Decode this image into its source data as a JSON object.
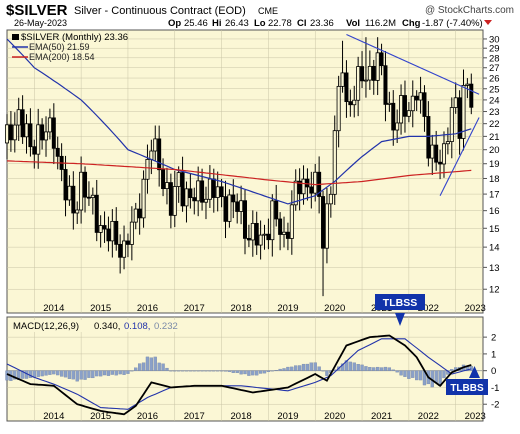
{
  "header": {
    "symbol": "$SILVER",
    "description": "Silver - Continuous Contract (EOD)",
    "exchange": "CME",
    "watermark": "@ StockCharts.com",
    "date": "26-May-2023",
    "op_label": "Op",
    "op_value": "25.46",
    "hi_label": "Hi",
    "hi_value": "26.43",
    "lo_label": "Lo",
    "lo_value": "22.78",
    "cl_label": "Cl",
    "cl_value": "23.36",
    "vol_label": "Vol",
    "vol_value": "116.2M",
    "chg_label": "Chg",
    "chg_value": "-1.87 (-7.40%)"
  },
  "price_legend": {
    "series": "$SILVER (Monthly) 23.36",
    "ema50": "EMA(50) 21.59",
    "ema200": "EMA(200) 18.54"
  },
  "macd_legend": {
    "params": "MACD(12,26,9)",
    "v1": "0.340,",
    "v2": "0.108,",
    "v3": "0.232"
  },
  "annotations": {
    "top_label": "TLBSS",
    "bottom_label": "TLBBS"
  },
  "colors": {
    "panel_bg": "#fbf7d5",
    "ema50": "#2233aa",
    "ema200": "#cc2222",
    "trend": "#3344cc",
    "hist": "#8aa0c8",
    "label_box": "#1133aa"
  },
  "chart_data": [
    {
      "type": "ohlc",
      "interval": "monthly",
      "scale": "log",
      "ylim": [
        11,
        31
      ],
      "xlim": [
        "2013-06",
        "2023-08"
      ],
      "y_ticks": [
        "30",
        "29",
        "28",
        "27",
        "26",
        "25",
        "24",
        "23",
        "22",
        "21",
        "20",
        "19",
        "18",
        "17",
        "16",
        "15",
        "14",
        "13",
        "12"
      ],
      "x_ticks": [
        "2014",
        "2015",
        "2016",
        "2017",
        "2018",
        "2019",
        "2020",
        "2021",
        "2022",
        "2023"
      ],
      "series": [
        {
          "name": "$SILVER",
          "anchors": [
            [
              "2013-06",
              20.5
            ],
            [
              "2013-09",
              23.0
            ],
            [
              "2013-12",
              19.8
            ],
            [
              "2014-02",
              21.5
            ],
            [
              "2014-06",
              21.0
            ],
            [
              "2014-09",
              17.2
            ],
            [
              "2014-11",
              15.8
            ],
            [
              "2015-01",
              18.0
            ],
            [
              "2015-03",
              16.5
            ],
            [
              "2015-07",
              14.8
            ],
            [
              "2015-11",
              14.2
            ],
            [
              "2015-12",
              13.9
            ],
            [
              "2016-03",
              15.5
            ],
            [
              "2016-07",
              20.2
            ],
            [
              "2016-09",
              19.2
            ],
            [
              "2016-12",
              16.0
            ],
            [
              "2017-02",
              18.0
            ],
            [
              "2017-05",
              16.5
            ],
            [
              "2017-08",
              17.3
            ],
            [
              "2017-12",
              17.0
            ],
            [
              "2018-02",
              16.5
            ],
            [
              "2018-06",
              16.0
            ],
            [
              "2018-08",
              14.6
            ],
            [
              "2018-11",
              14.3
            ],
            [
              "2019-02",
              15.8
            ],
            [
              "2019-05",
              14.4
            ],
            [
              "2019-07",
              16.3
            ],
            [
              "2019-09",
              17.5
            ],
            [
              "2019-12",
              17.9
            ],
            [
              "2020-02",
              16.8
            ],
            [
              "2020-03",
              14.2
            ],
            [
              "2020-05",
              18.0
            ],
            [
              "2020-07",
              24.0
            ],
            [
              "2020-08",
              27.5
            ],
            [
              "2020-09",
              23.5
            ],
            [
              "2021-01",
              26.0
            ],
            [
              "2021-05",
              27.5
            ],
            [
              "2021-09",
              22.0
            ],
            [
              "2021-12",
              23.2
            ],
            [
              "2022-02",
              24.0
            ],
            [
              "2022-03",
              25.0
            ],
            [
              "2022-06",
              20.5
            ],
            [
              "2022-09",
              19.0
            ],
            [
              "2022-10",
              19.2
            ],
            [
              "2022-12",
              23.8
            ],
            [
              "2023-01",
              23.8
            ],
            [
              "2023-02",
              21.5
            ],
            [
              "2023-03",
              24.0
            ],
            [
              "2023-04",
              25.2
            ],
            [
              "2023-05",
              23.36
            ]
          ]
        },
        {
          "name": "EMA(50)",
          "anchors": [
            [
              "2013-06",
              30.0
            ],
            [
              "2014-01",
              27.0
            ],
            [
              "2015-01",
              24.0
            ],
            [
              "2016-01",
              20.0
            ],
            [
              "2017-01",
              18.6
            ],
            [
              "2018-01",
              17.8
            ],
            [
              "2019-01",
              16.8
            ],
            [
              "2019-06",
              16.4
            ],
            [
              "2020-01",
              16.9
            ],
            [
              "2020-06",
              17.8
            ],
            [
              "2021-01",
              19.5
            ],
            [
              "2021-06",
              20.6
            ],
            [
              "2022-01",
              21.0
            ],
            [
              "2022-06",
              21.0
            ],
            [
              "2023-01",
              21.2
            ],
            [
              "2023-05",
              21.59
            ]
          ]
        },
        {
          "name": "EMA(200)",
          "anchors": [
            [
              "2013-06",
              19.2
            ],
            [
              "2015-01",
              19.0
            ],
            [
              "2017-01",
              18.6
            ],
            [
              "2019-01",
              17.9
            ],
            [
              "2020-01",
              17.6
            ],
            [
              "2021-01",
              17.8
            ],
            [
              "2022-01",
              18.2
            ],
            [
              "2023-05",
              18.54
            ]
          ]
        }
      ],
      "trendlines": [
        {
          "from": [
            "2020-09",
            30.5
          ],
          "to": [
            "2023-07",
            24.5
          ]
        },
        {
          "from": [
            "2022-09",
            16.9
          ],
          "to": [
            "2023-07",
            22.5
          ]
        }
      ]
    },
    {
      "type": "macd",
      "ylim": [
        -3,
        3.2
      ],
      "y_ticks": [
        "2",
        "1",
        "0",
        "-1",
        "-2"
      ],
      "x_ticks": [
        "2014",
        "2015",
        "2016",
        "2017",
        "2018",
        "2019",
        "2020",
        "2021",
        "2022",
        "2023"
      ],
      "series": [
        {
          "name": "MACD",
          "anchors": [
            [
              "2013-06",
              -0.2
            ],
            [
              "2013-12",
              -0.8
            ],
            [
              "2014-06",
              -0.9
            ],
            [
              "2014-12",
              -2.0
            ],
            [
              "2015-06",
              -2.4
            ],
            [
              "2015-12",
              -2.6
            ],
            [
              "2016-03",
              -2.1
            ],
            [
              "2016-07",
              -0.7
            ],
            [
              "2016-12",
              -1.0
            ],
            [
              "2017-06",
              -0.9
            ],
            [
              "2018-01",
              -0.9
            ],
            [
              "2018-09",
              -1.3
            ],
            [
              "2019-06",
              -1.0
            ],
            [
              "2020-01",
              -0.2
            ],
            [
              "2020-04",
              -0.6
            ],
            [
              "2020-09",
              1.5
            ],
            [
              "2021-03",
              2.0
            ],
            [
              "2021-08",
              2.1
            ],
            [
              "2021-12",
              1.5
            ],
            [
              "2022-03",
              0.8
            ],
            [
              "2022-06",
              -0.4
            ],
            [
              "2022-09",
              -0.9
            ],
            [
              "2022-12",
              -0.1
            ],
            [
              "2023-03",
              0.2
            ],
            [
              "2023-05",
              0.34
            ]
          ]
        },
        {
          "name": "Signal",
          "anchors": [
            [
              "2013-06",
              0.4
            ],
            [
              "2014-01",
              -0.4
            ],
            [
              "2014-06",
              -0.8
            ],
            [
              "2014-12",
              -1.4
            ],
            [
              "2015-06",
              -2.2
            ],
            [
              "2016-01",
              -2.3
            ],
            [
              "2016-06",
              -1.6
            ],
            [
              "2016-12",
              -1.0
            ],
            [
              "2017-06",
              -0.9
            ],
            [
              "2018-06",
              -0.9
            ],
            [
              "2019-06",
              -1.2
            ],
            [
              "2020-01",
              -0.7
            ],
            [
              "2020-05",
              -0.3
            ],
            [
              "2020-12",
              1.2
            ],
            [
              "2021-06",
              1.9
            ],
            [
              "2021-12",
              1.9
            ],
            [
              "2022-06",
              0.8
            ],
            [
              "2022-12",
              -0.2
            ],
            [
              "2023-05",
              0.108
            ]
          ]
        },
        {
          "name": "Histogram",
          "anchors": [
            [
              "2013-06",
              -0.6
            ],
            [
              "2014-01",
              -0.4
            ],
            [
              "2014-06",
              -0.2
            ],
            [
              "2014-12",
              -0.6
            ],
            [
              "2015-06",
              -0.3
            ],
            [
              "2016-01",
              -0.2
            ],
            [
              "2016-03",
              0.2
            ],
            [
              "2016-07",
              0.9
            ],
            [
              "2016-12",
              0.0
            ],
            [
              "2017-06",
              0.0
            ],
            [
              "2018-01",
              0.0
            ],
            [
              "2018-09",
              -0.3
            ],
            [
              "2019-06",
              0.2
            ],
            [
              "2020-01",
              0.5
            ],
            [
              "2020-04",
              -0.3
            ],
            [
              "2020-09",
              0.6
            ],
            [
              "2021-03",
              0.2
            ],
            [
              "2021-08",
              0.2
            ],
            [
              "2021-12",
              -0.4
            ],
            [
              "2022-03",
              -0.5
            ],
            [
              "2022-06",
              -0.9
            ],
            [
              "2022-09",
              -0.8
            ],
            [
              "2022-12",
              0.1
            ],
            [
              "2023-03",
              0.3
            ],
            [
              "2023-05",
              0.232
            ]
          ]
        }
      ]
    }
  ]
}
